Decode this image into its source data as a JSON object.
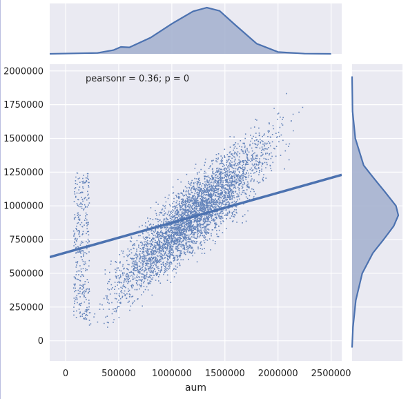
{
  "chart_data": {
    "type": "scatter",
    "title": "",
    "xlabel": "aum",
    "ylabel": "",
    "annotation": "pearsonr = 0.36; p = 0",
    "xlim": [
      -150000,
      2600000
    ],
    "ylim": [
      -150000,
      2050000
    ],
    "x_ticks": [
      {
        "value": 0,
        "label": "0"
      },
      {
        "value": 500000,
        "label": "500000"
      },
      {
        "value": 1000000,
        "label": "1000000"
      },
      {
        "value": 1500000,
        "label": "1500000"
      },
      {
        "value": 2000000,
        "label": "2000000"
      },
      {
        "value": 2500000,
        "label": "2500000"
      }
    ],
    "y_ticks": [
      {
        "value": 0,
        "label": "0"
      },
      {
        "value": 250000,
        "label": "250000"
      },
      {
        "value": 500000,
        "label": "500000"
      },
      {
        "value": 750000,
        "label": "750000"
      },
      {
        "value": 1000000,
        "label": "1000000"
      },
      {
        "value": 1250000,
        "label": "1250000"
      },
      {
        "value": 1500000,
        "label": "1500000"
      },
      {
        "value": 1750000,
        "label": "1750000"
      },
      {
        "value": 2000000,
        "label": "2000000"
      }
    ],
    "grid": true,
    "regression_line": {
      "x": [
        -150000,
        2600000
      ],
      "y": [
        620000,
        1230000
      ]
    },
    "scatter_cloud": {
      "center": [
        1200000,
        930000
      ],
      "x_range": [
        50000,
        2250000
      ],
      "y_range": [
        0,
        1900000
      ],
      "point_count_rendered": 4500
    },
    "marginal_x": {
      "x": [
        -150000,
        300000,
        450000,
        520000,
        600000,
        800000,
        1000000,
        1200000,
        1330000,
        1450000,
        1600000,
        1800000,
        2000000,
        2250000,
        2500000
      ],
      "density": [
        0,
        0.02,
        0.08,
        0.15,
        0.14,
        0.35,
        0.65,
        0.92,
        1.0,
        0.93,
        0.62,
        0.22,
        0.04,
        0.005,
        0
      ]
    },
    "marginal_y": {
      "y": [
        -50000,
        100000,
        300000,
        500000,
        650000,
        750000,
        850000,
        930000,
        1000000,
        1100000,
        1200000,
        1300000,
        1500000,
        1700000,
        1960000
      ],
      "density": [
        0,
        0.02,
        0.08,
        0.22,
        0.45,
        0.68,
        0.9,
        1.0,
        0.95,
        0.72,
        0.48,
        0.25,
        0.07,
        0.01,
        0
      ]
    },
    "colors": {
      "point": "#4c72b0",
      "line": "#4c72b0",
      "kde_fill": "#a6b3cf",
      "axes_bg": "#eaeaf2",
      "grid": "#ffffff"
    }
  }
}
